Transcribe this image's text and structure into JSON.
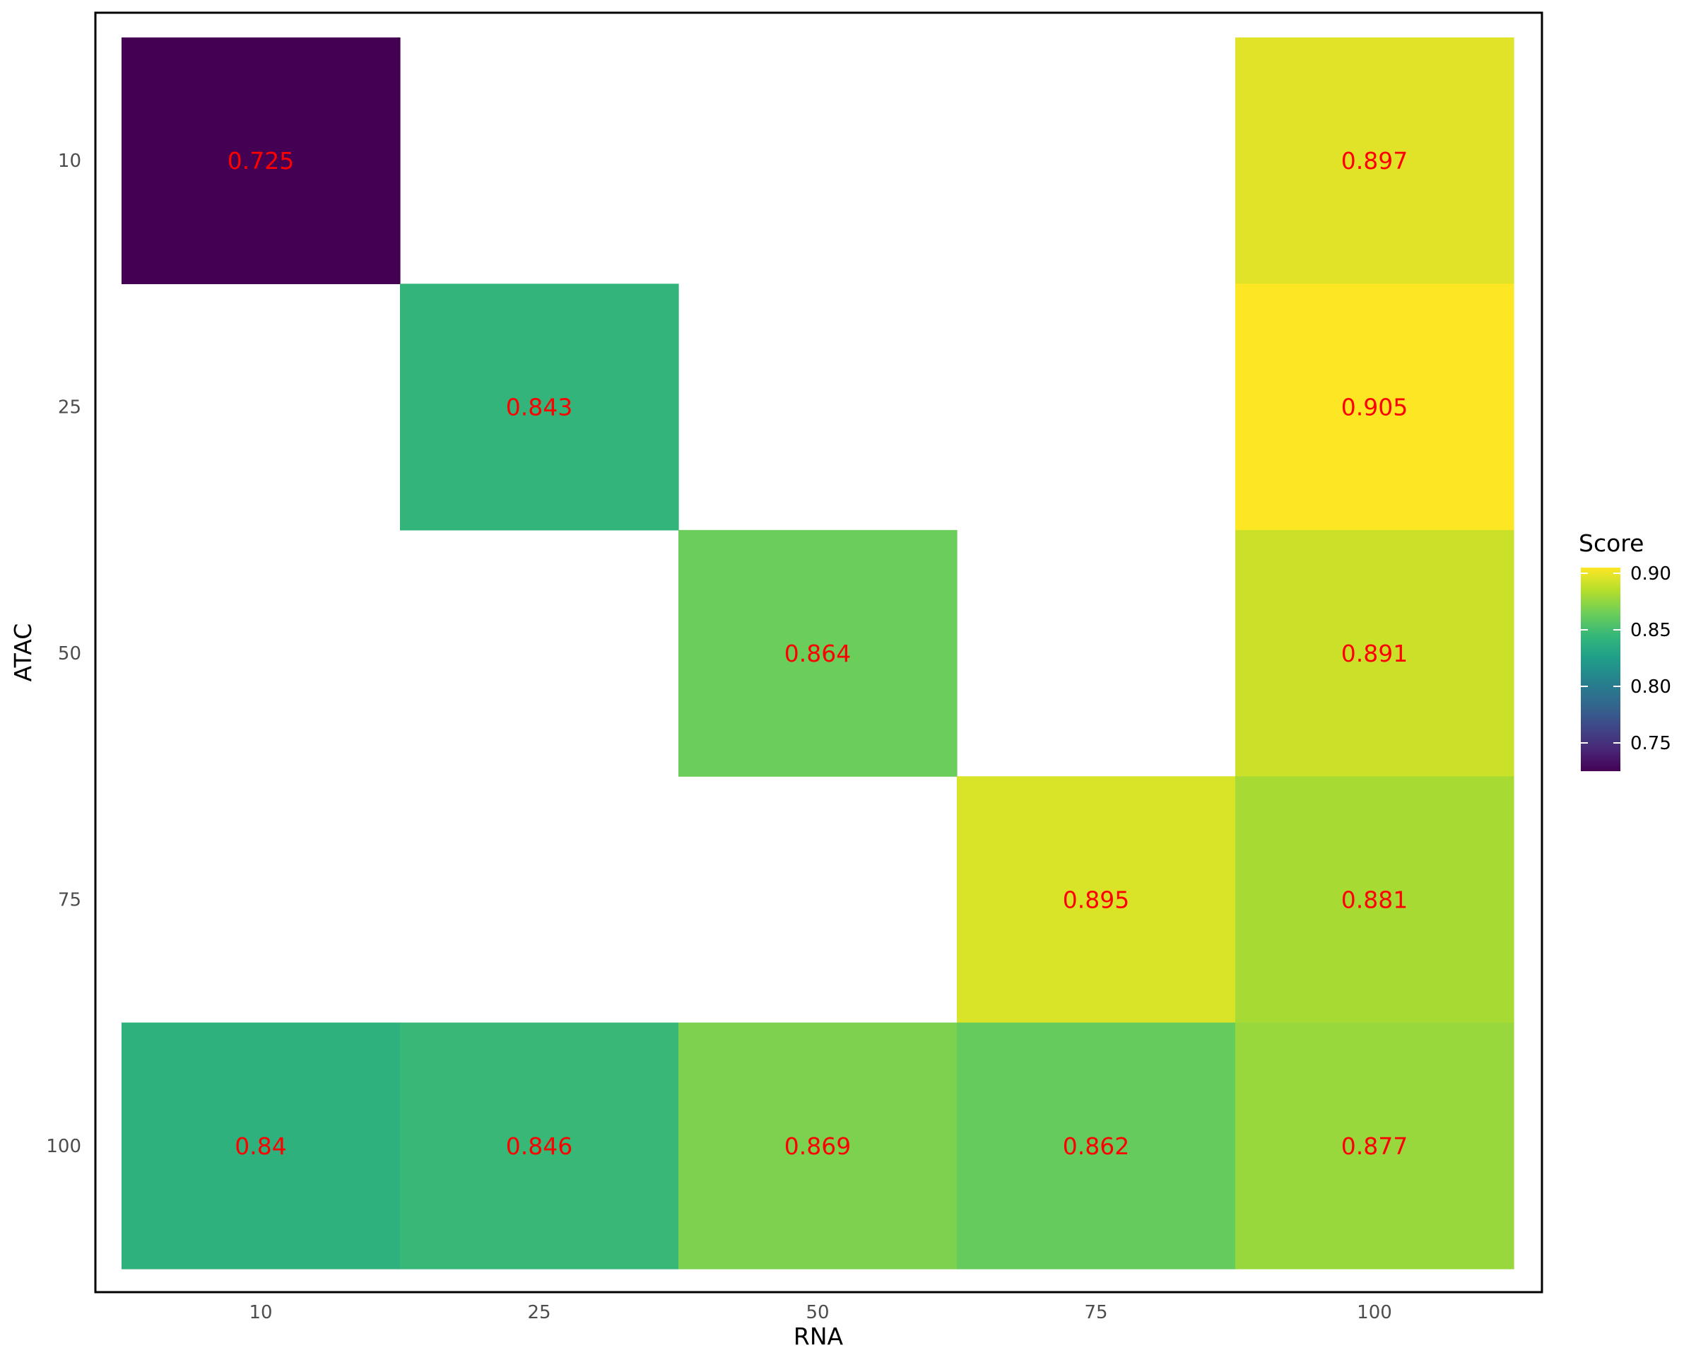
{
  "chart_data": {
    "type": "heatmap",
    "xlabel": "RNA",
    "ylabel": "ATAC",
    "x_categories": [
      "10",
      "25",
      "50",
      "75",
      "100"
    ],
    "y_categories": [
      "10",
      "25",
      "50",
      "75",
      "100"
    ],
    "cells": [
      {
        "x": "10",
        "y": "10",
        "value": 0.725,
        "label": "0.725"
      },
      {
        "x": "100",
        "y": "10",
        "value": 0.897,
        "label": "0.897"
      },
      {
        "x": "25",
        "y": "25",
        "value": 0.843,
        "label": "0.843"
      },
      {
        "x": "100",
        "y": "25",
        "value": 0.905,
        "label": "0.905"
      },
      {
        "x": "50",
        "y": "50",
        "value": 0.864,
        "label": "0.864"
      },
      {
        "x": "100",
        "y": "50",
        "value": 0.891,
        "label": "0.891"
      },
      {
        "x": "75",
        "y": "75",
        "value": 0.895,
        "label": "0.895"
      },
      {
        "x": "100",
        "y": "75",
        "value": 0.881,
        "label": "0.881"
      },
      {
        "x": "10",
        "y": "100",
        "value": 0.84,
        "label": "0.84"
      },
      {
        "x": "25",
        "y": "100",
        "value": 0.846,
        "label": "0.846"
      },
      {
        "x": "50",
        "y": "100",
        "value": 0.869,
        "label": "0.869"
      },
      {
        "x": "75",
        "y": "100",
        "value": 0.862,
        "label": "0.862"
      },
      {
        "x": "100",
        "y": "100",
        "value": 0.877,
        "label": "0.877"
      }
    ],
    "label_color": "#ff0000",
    "colorscale": "viridis",
    "value_range": [
      0.725,
      0.905
    ],
    "legend": {
      "title": "Score",
      "ticks": [
        0.75,
        0.8,
        0.85,
        0.9
      ],
      "tick_labels": [
        "0.75",
        "0.80",
        "0.85",
        "0.90"
      ],
      "position": "right"
    },
    "grid": false
  }
}
